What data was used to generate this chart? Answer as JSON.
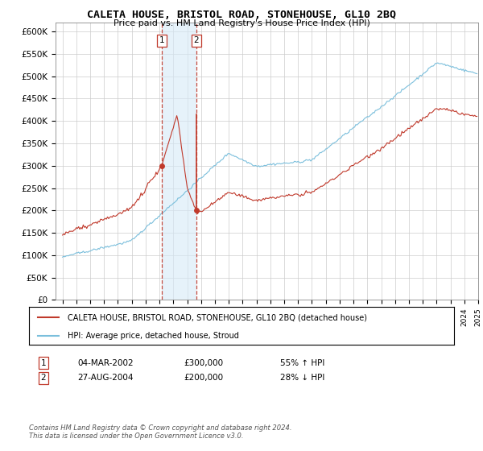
{
  "title": "CALETA HOUSE, BRISTOL ROAD, STONEHOUSE, GL10 2BQ",
  "subtitle": "Price paid vs. HM Land Registry's House Price Index (HPI)",
  "legend_line1": "CALETA HOUSE, BRISTOL ROAD, STONEHOUSE, GL10 2BQ (detached house)",
  "legend_line2": "HPI: Average price, detached house, Stroud",
  "transaction1_date": "04-MAR-2002",
  "transaction1_price": "£300,000",
  "transaction1_hpi": "55% ↑ HPI",
  "transaction2_date": "27-AUG-2004",
  "transaction2_price": "£200,000",
  "transaction2_hpi": "28% ↓ HPI",
  "footer": "Contains HM Land Registry data © Crown copyright and database right 2024.\nThis data is licensed under the Open Government Licence v3.0.",
  "hpi_color": "#7bbfdc",
  "price_color": "#c0392b",
  "vline_color": "#c0392b",
  "shade_color": "#d6eaf8",
  "ylim_min": 0,
  "ylim_max": 620000,
  "yticks": [
    0,
    50000,
    100000,
    150000,
    200000,
    250000,
    300000,
    350000,
    400000,
    450000,
    500000,
    550000,
    600000
  ],
  "ytick_labels": [
    "£0",
    "£50K",
    "£100K",
    "£150K",
    "£200K",
    "£250K",
    "£300K",
    "£350K",
    "£400K",
    "£450K",
    "£500K",
    "£550K",
    "£600K"
  ],
  "transaction1_x": 2002.17,
  "transaction1_y": 300000,
  "transaction2_x": 2004.65,
  "transaction2_y": 200000,
  "vline1_x": 2002.17,
  "vline2_x": 2004.65,
  "xmin": 1995.0,
  "xmax": 2025.0
}
